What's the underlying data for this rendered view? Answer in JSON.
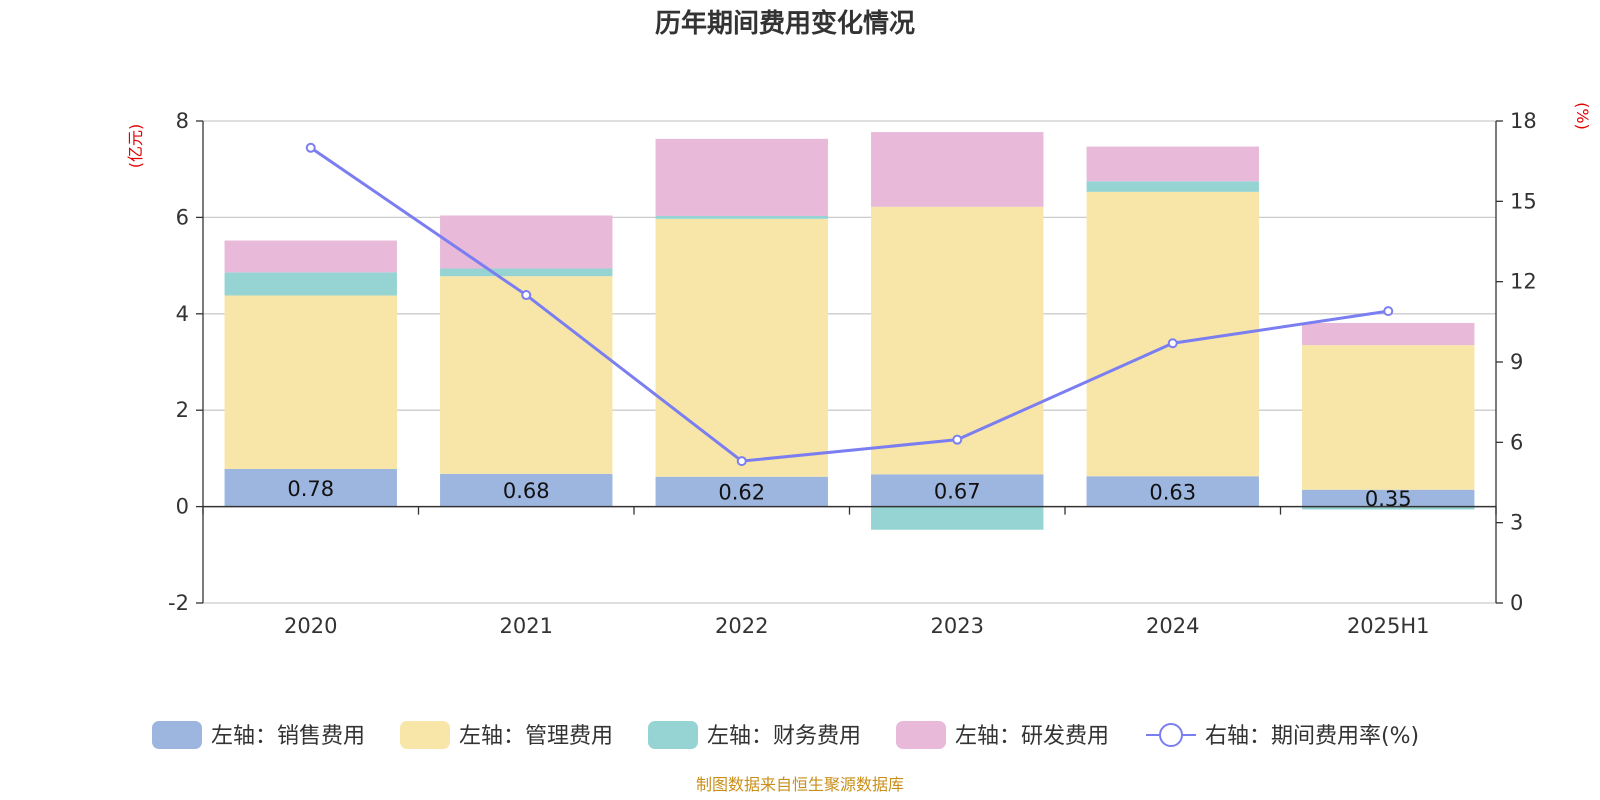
{
  "chart_data": {
    "type": "bar",
    "title": "历年期间费用变化情况",
    "source_note": "制图数据来自恒生聚源数据库",
    "left_axis": {
      "unit_label": "(亿元)",
      "min": -2,
      "max": 8,
      "ticks": [
        "-2",
        "0",
        "2",
        "4",
        "6",
        "8"
      ]
    },
    "right_axis": {
      "unit_label": "(%)",
      "min": 0,
      "max": 18,
      "ticks": [
        "0",
        "3",
        "6",
        "9",
        "12",
        "15",
        "18"
      ]
    },
    "categories": [
      "2020",
      "2021",
      "2022",
      "2023",
      "2024",
      "2025H1"
    ],
    "series": [
      {
        "name": "左轴：销售费用",
        "kind": "bar",
        "axis": "left",
        "color": "#9db6e0",
        "values": [
          0.78,
          0.68,
          0.62,
          0.67,
          0.63,
          0.35
        ],
        "labels": [
          "0.78",
          "0.68",
          "0.62",
          "0.67",
          "0.63",
          "0.35"
        ]
      },
      {
        "name": "左轴：管理费用",
        "kind": "bar",
        "axis": "left",
        "color": "#f7e6a8",
        "values": [
          3.6,
          4.1,
          5.35,
          5.55,
          5.9,
          3.0
        ]
      },
      {
        "name": "左轴：财务费用",
        "kind": "bar",
        "axis": "left",
        "color": "#96d4d3",
        "values": [
          0.48,
          0.16,
          0.06,
          -0.48,
          0.22,
          -0.06
        ]
      },
      {
        "name": "左轴：研发费用",
        "kind": "bar",
        "axis": "left",
        "color": "#e8b9d9",
        "values": [
          0.66,
          1.1,
          1.6,
          1.55,
          0.72,
          0.46
        ]
      },
      {
        "name": "右轴：期间费用率(%)",
        "kind": "line",
        "axis": "right",
        "color": "#7b7ef0",
        "values": [
          17.0,
          11.5,
          5.3,
          6.1,
          9.7,
          10.9
        ]
      }
    ],
    "grid": true,
    "legend_position": "bottom"
  }
}
